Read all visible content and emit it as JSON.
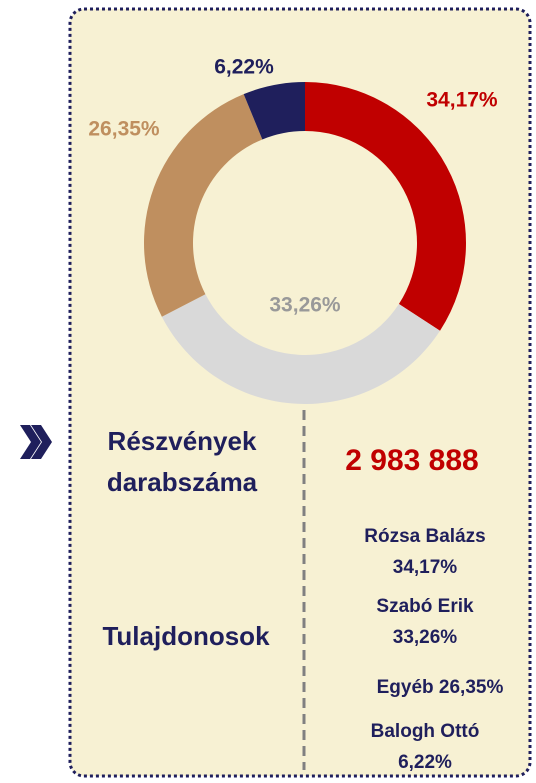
{
  "chart_data": {
    "type": "pie",
    "categories": [
      "Rózsa Balázs",
      "Szabó Erik",
      "Egyéb",
      "Balogh Ottó"
    ],
    "values": [
      34.17,
      33.26,
      26.35,
      6.22
    ],
    "value_labels": [
      "34,17%",
      "33,26%",
      "26,35%",
      "6,22%"
    ],
    "colors": [
      "#c00000",
      "#d9d9d9",
      "#bf8f5f",
      "#1f1f5c"
    ],
    "label_colors": [
      "#c00000",
      "#999999",
      "#bf8f5f",
      "#1f1f5c"
    ]
  },
  "shares": {
    "label": [
      "Részvények",
      "darabszáma"
    ],
    "value": "2 983 888"
  },
  "owners_label": "Tulajdonosok"
}
